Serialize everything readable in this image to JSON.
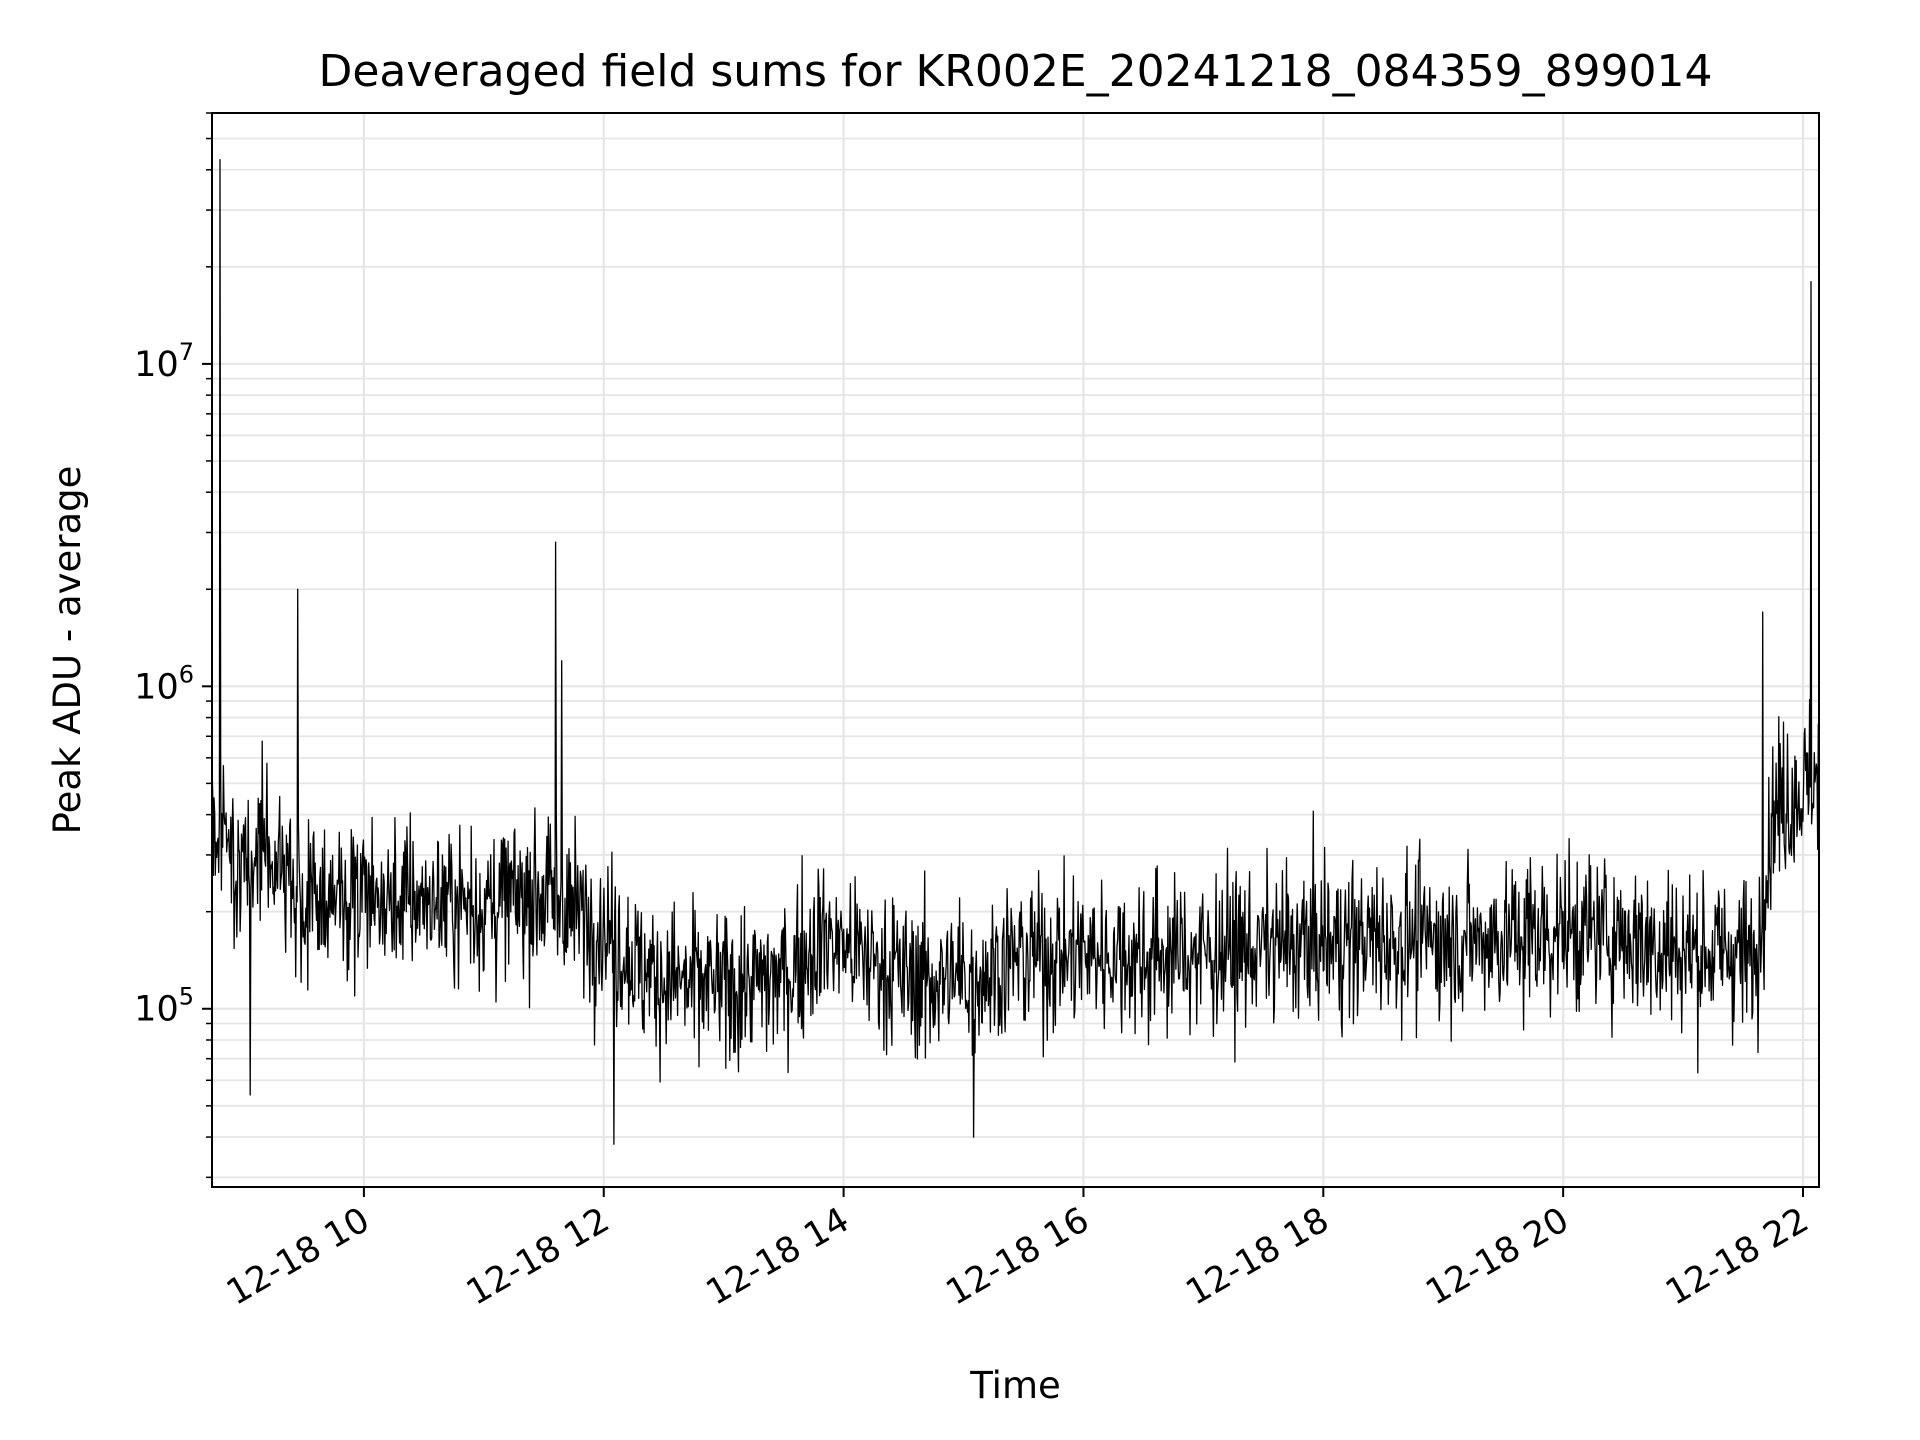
{
  "chart_data": {
    "type": "line",
    "title": "Deaveraged field sums for KR002E_20241218_084359_899014",
    "xlabel": "Time",
    "ylabel": "Peak ADU - average",
    "yscale": "log",
    "grid": true,
    "legend": "none",
    "colors": {
      "line": "#000000",
      "grid": "#e6e6e6",
      "axes": "#000000",
      "background": "#ffffff"
    },
    "xlim": [
      "2024-12-18 08:44",
      "2024-12-18 22:08"
    ],
    "ylim": [
      28000,
      60000000
    ],
    "x_ticks": [
      {
        "value": "2024-12-18 10:00",
        "label": "12-18 10"
      },
      {
        "value": "2024-12-18 12:00",
        "label": "12-18 12"
      },
      {
        "value": "2024-12-18 14:00",
        "label": "12-18 14"
      },
      {
        "value": "2024-12-18 16:00",
        "label": "12-18 16"
      },
      {
        "value": "2024-12-18 18:00",
        "label": "12-18 18"
      },
      {
        "value": "2024-12-18 20:00",
        "label": "12-18 20"
      },
      {
        "value": "2024-12-18 22:00",
        "label": "12-18 22"
      }
    ],
    "y_ticks": [
      {
        "value": 100000,
        "base": "10",
        "exp": "5"
      },
      {
        "value": 1000000,
        "base": "10",
        "exp": "6"
      },
      {
        "value": 10000000,
        "base": "10",
        "exp": "7"
      }
    ],
    "series": [
      {
        "x": [
          "2024-12-18 08:44",
          "2024-12-18 08:48",
          "2024-12-18 09:00",
          "2024-12-18 09:10",
          "2024-12-18 09:20",
          "2024-12-18 09:30",
          "2024-12-18 09:45",
          "2024-12-18 10:00",
          "2024-12-18 10:30",
          "2024-12-18 11:00",
          "2024-12-18 11:30",
          "2024-12-18 12:00",
          "2024-12-18 12:20",
          "2024-12-18 12:40",
          "2024-12-18 13:00",
          "2024-12-18 13:30",
          "2024-12-18 13:50",
          "2024-12-18 14:15",
          "2024-12-18 14:40",
          "2024-12-18 15:00",
          "2024-12-18 15:30",
          "2024-12-18 16:00",
          "2024-12-18 16:30",
          "2024-12-18 17:00",
          "2024-12-18 17:30",
          "2024-12-18 18:00",
          "2024-12-18 18:30",
          "2024-12-18 19:00",
          "2024-12-18 19:30",
          "2024-12-18 20:00",
          "2024-12-18 20:30",
          "2024-12-18 21:00",
          "2024-12-18 21:25",
          "2024-12-18 21:37",
          "2024-12-18 21:45",
          "2024-12-18 22:00",
          "2024-12-18 22:08"
        ],
        "y": [
          300000,
          350000,
          280000,
          320000,
          250000,
          230000,
          220000,
          210000,
          220000,
          210000,
          230000,
          180000,
          130000,
          120000,
          115000,
          125000,
          170000,
          140000,
          120000,
          125000,
          145000,
          150000,
          145000,
          150000,
          155000,
          160000,
          165000,
          165000,
          165000,
          175000,
          170000,
          150000,
          150000,
          140000,
          420000,
          480000,
          520000
        ]
      }
    ],
    "spikes": [
      {
        "x": "2024-12-18 08:48",
        "y": 43000000
      },
      {
        "x": "2024-12-18 09:27",
        "y": 2000000
      },
      {
        "x": "2024-12-18 11:36",
        "y": 2800000
      },
      {
        "x": "2024-12-18 11:39",
        "y": 1200000
      },
      {
        "x": "2024-12-18 21:40",
        "y": 1700000
      },
      {
        "x": "2024-12-18 22:04",
        "y": 18000000
      }
    ],
    "dips": [
      {
        "x": "2024-12-18 09:03",
        "y": 54000
      },
      {
        "x": "2024-12-18 12:05",
        "y": 38000
      },
      {
        "x": "2024-12-18 15:05",
        "y": 40000
      }
    ]
  }
}
